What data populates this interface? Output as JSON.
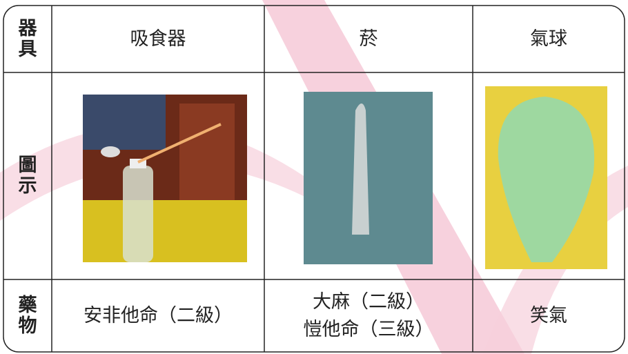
{
  "table": {
    "rows": [
      {
        "label": "器具",
        "cells": [
          "吸食器",
          "菸",
          "氣球"
        ]
      },
      {
        "label": "圖示"
      },
      {
        "label": "藥物",
        "cells": [
          "安非他命（二級）",
          [
            "大麻（二級）",
            "愷他命（三級）"
          ],
          "笑氣"
        ]
      }
    ]
  }
}
